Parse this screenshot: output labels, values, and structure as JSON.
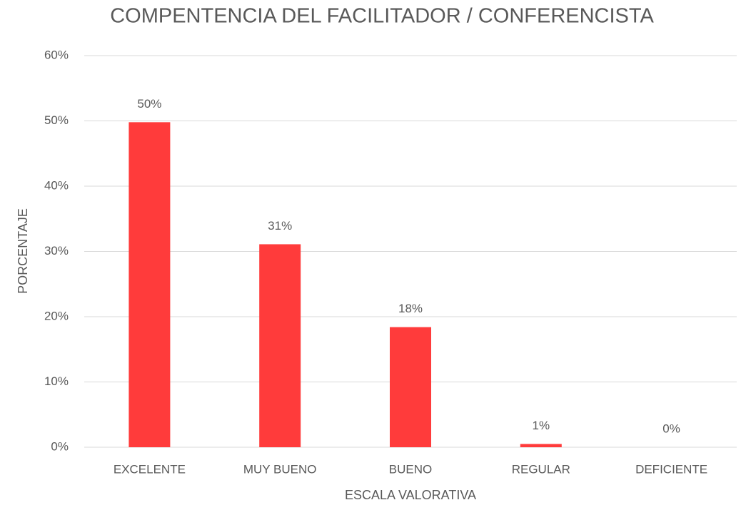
{
  "chart_data": {
    "type": "bar",
    "title": "COMPENTENCIA DEL FACILITADOR / CONFERENCISTA",
    "x_label": "ESCALA VALORATIVA",
    "y_label": "PORCENTAJE",
    "categories": [
      "EXCELENTE",
      "MUY BUENO",
      "BUENO",
      "REGULAR",
      "DEFICIENTE"
    ],
    "values": [
      49.8,
      31.1,
      18.4,
      0.5,
      0
    ],
    "value_labels": [
      "50%",
      "31%",
      "18%",
      "1%",
      "0%"
    ],
    "color": "#ff3b3b",
    "ylim": [
      0,
      60
    ],
    "yticks": [
      {
        "value": 0,
        "label": "0%"
      },
      {
        "value": 10,
        "label": "10%"
      },
      {
        "value": 20,
        "label": "20%"
      },
      {
        "value": 30,
        "label": "30%"
      },
      {
        "value": 40,
        "label": "40%"
      },
      {
        "value": 50,
        "label": "50%"
      },
      {
        "value": 60,
        "label": "60%"
      }
    ],
    "grid": true
  }
}
